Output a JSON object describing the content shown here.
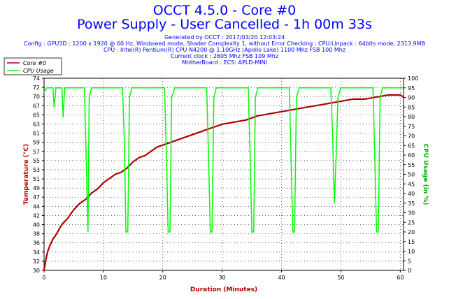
{
  "header": {
    "title": "OCCT 4.5.0 - Core #0",
    "subtitle": "Power Supply - User Cancelled - 1h 00m 33s",
    "info_lines": [
      "Generated by OCCT : 2017/03/20 12:03:24",
      "Config : GPU3D : 1200 x 1920 @ 60 Hz, Windowed mode, Shader Complexity 1, without Error Checking ; CPU:Linpack : 64bits mode, 2313.9MB",
      "CPU : Intel(R) Pentium(R) CPU N4200 @ 1.10GHz (Apollo Lake) 1100 Mhz FSB 100 Mhz",
      "Current clock : 2605 Mhz FSB 109 Mhz",
      "MotherBoard : ECS: APLD-MINI"
    ]
  },
  "colors": {
    "temperature": "#b00000",
    "cpu_usage": "#00ff00",
    "title": "#0000ff",
    "grid": "#000000"
  },
  "chart_data": {
    "type": "line",
    "xlabel": "Duration (Minutes)",
    "ylabel": "Temperature (°C)",
    "y2label": "CPU Usage (in %)",
    "xlim": [
      0,
      60.55
    ],
    "ylim": [
      30,
      76
    ],
    "y2lim": [
      0,
      100
    ],
    "xticks": [
      "0",
      "10",
      "20",
      "30",
      "40",
      "50",
      "60"
    ],
    "yticks": [
      "30",
      "32",
      "34",
      "36",
      "38",
      "40",
      "42",
      "44",
      "47",
      "49",
      "51",
      "53",
      "55",
      "57",
      "59",
      "61",
      "63",
      "65",
      "67",
      "70",
      "72",
      "74"
    ],
    "y2ticks": [
      "0",
      "5",
      "10",
      "15",
      "20",
      "25",
      "30",
      "35",
      "40",
      "45",
      "50",
      "55",
      "60",
      "65",
      "70",
      "75",
      "80",
      "85",
      "90",
      "95",
      "100"
    ],
    "grid": true,
    "legend_position": "top-left",
    "series": [
      {
        "name": "Core #0",
        "axis": "left",
        "x": [
          0,
          0.3,
          0.6,
          1,
          1.5,
          2,
          3,
          4,
          5,
          6,
          7,
          8,
          9,
          10,
          11,
          12,
          13,
          14,
          15,
          16,
          17,
          18,
          19,
          20,
          21,
          22,
          23,
          24,
          25,
          26,
          27,
          28,
          29,
          30,
          32,
          34,
          36,
          38,
          40,
          42,
          44,
          46,
          48,
          50,
          52,
          54,
          56,
          58,
          60,
          60.5
        ],
        "y": [
          30,
          32.5,
          34.5,
          36,
          37.5,
          38.5,
          41,
          42.5,
          44.5,
          46,
          47,
          48.5,
          49.5,
          51,
          52,
          53,
          53.5,
          54.5,
          56,
          57,
          57.5,
          58.5,
          59.5,
          60,
          60.5,
          61,
          61.5,
          62,
          62.5,
          63,
          63.5,
          64,
          64.5,
          65,
          65.5,
          66,
          67,
          67.5,
          68,
          68.5,
          69,
          69.5,
          70,
          70.5,
          71,
          71,
          71.5,
          72,
          72,
          71.5
        ]
      },
      {
        "name": "CPU Usage",
        "axis": "right",
        "x": [
          0,
          0.5,
          1.5,
          1.7,
          2,
          3,
          3.2,
          3.5,
          6.8,
          7,
          7.4,
          7.6,
          8,
          13.2,
          13.5,
          13.8,
          14.1,
          14.4,
          14.8,
          20.3,
          20.6,
          20.9,
          21.2,
          21.5,
          22,
          27.4,
          27.7,
          28,
          28.3,
          28.6,
          29,
          34.4,
          34.7,
          35,
          35.3,
          35.6,
          36,
          41.3,
          41.6,
          41.9,
          42.2,
          42.5,
          43,
          48.3,
          48.6,
          48.9,
          49.2,
          49.5,
          50,
          55.4,
          55.7,
          56,
          56.3,
          56.6,
          57,
          60.5
        ],
        "y": [
          93,
          95,
          95,
          85,
          95,
          95,
          80,
          95,
          95,
          70,
          20,
          90,
          95,
          95,
          70,
          20,
          20,
          90,
          95,
          95,
          60,
          20,
          20,
          90,
          95,
          95,
          60,
          20,
          20,
          90,
          95,
          95,
          60,
          20,
          20,
          90,
          95,
          95,
          60,
          20,
          20,
          90,
          95,
          95,
          70,
          35,
          60,
          90,
          95,
          95,
          60,
          20,
          20,
          90,
          95,
          95
        ]
      }
    ]
  }
}
